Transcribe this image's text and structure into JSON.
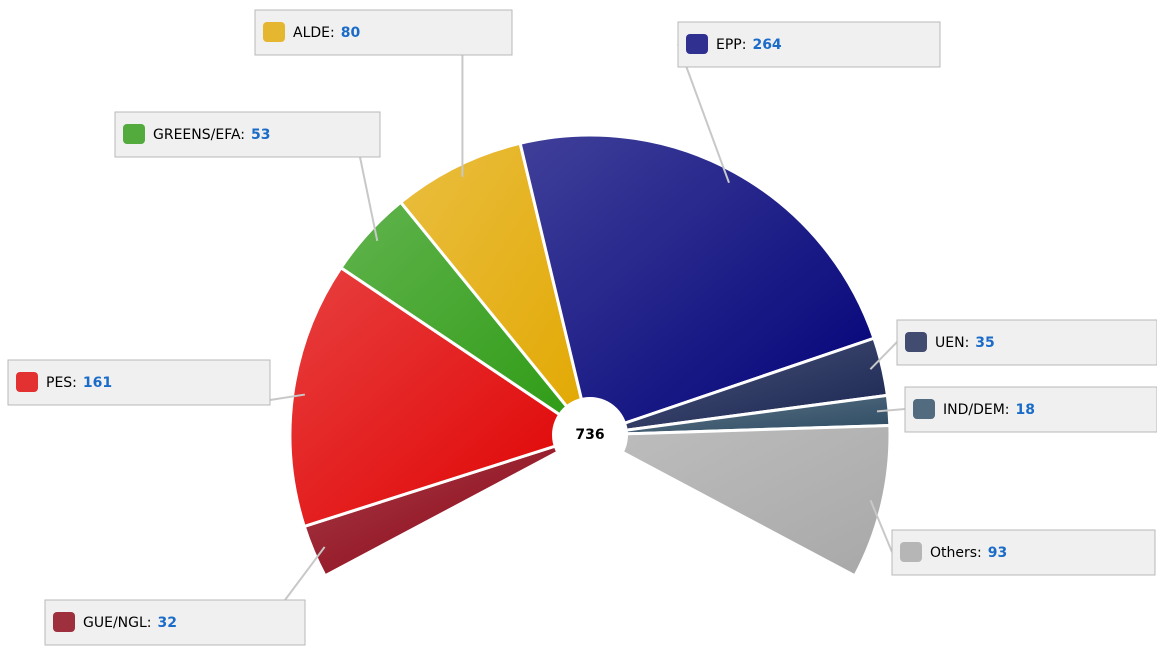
{
  "chart_data": {
    "type": "pie",
    "total": 736,
    "categories": [
      "GUE/NGL:",
      "PES:",
      "GREENS/EFA:",
      "ALDE:",
      "EPP:",
      "UEN:",
      "IND/DEM:",
      "Others:"
    ],
    "values": [
      32,
      161,
      53,
      80,
      264,
      35,
      18,
      93
    ],
    "colors": [
      "#8a0010",
      "#e00000",
      "#2c9a12",
      "#e2a800",
      "#000078",
      "#162250",
      "#2c4a62",
      "#a8a8a8"
    ]
  }
}
